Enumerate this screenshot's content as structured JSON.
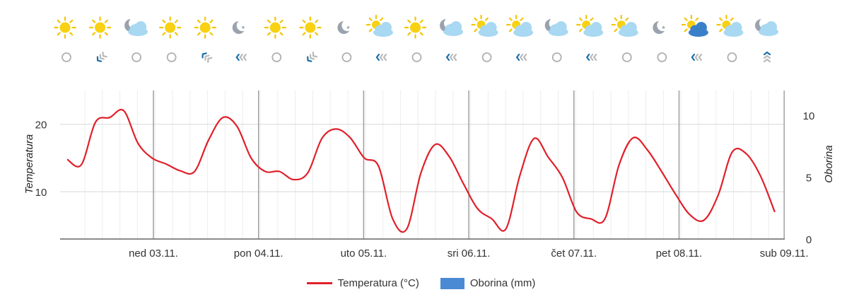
{
  "chart_data": {
    "type": "line",
    "series": [
      {
        "name": "Temperatura (°C)",
        "color": "#e0202a",
        "axis": "left",
        "values": [
          14.8,
          14.0,
          20.3,
          21.0,
          22.0,
          17.2,
          15.0,
          14.1,
          13.1,
          13.0,
          17.7,
          21.0,
          19.7,
          15.0,
          13.0,
          13.0,
          11.8,
          12.8,
          17.9,
          19.3,
          18.0,
          15.0,
          13.8,
          6.0,
          4.5,
          12.8,
          17.0,
          15.2,
          11.2,
          7.5,
          6.0,
          4.5,
          12.5,
          17.9,
          15.1,
          12.1,
          7.0,
          6.0,
          6.0,
          14.0,
          18.0,
          16.2,
          13.0,
          9.6,
          6.6,
          5.8,
          9.5,
          15.9,
          15.6,
          12.3,
          7.0
        ]
      },
      {
        "name": "Oborina (mm)",
        "color": "#4a8ad4",
        "axis": "right",
        "values": [
          0,
          0,
          0,
          0,
          0,
          0,
          0,
          0,
          0,
          0,
          0,
          0,
          0,
          0,
          0,
          0,
          0,
          0,
          0,
          0,
          0,
          0,
          0,
          0,
          0,
          0,
          0,
          0,
          0,
          0,
          0,
          0,
          0,
          0,
          0,
          0,
          0,
          0,
          0,
          0,
          0,
          0,
          0,
          0,
          0,
          0,
          0,
          0,
          0,
          0,
          0
        ]
      }
    ],
    "day_labels": [
      "ned 03.11.",
      "pon 04.11.",
      "uto 05.11.",
      "sri 06.11.",
      "čet 07.11.",
      "pet 08.11.",
      "sub 09.11."
    ],
    "ylabel_left": "Temperatura",
    "ylabel_right": "Oborina",
    "yticks_left": [
      "10",
      "20"
    ],
    "yticks_right": [
      "0",
      "5",
      "10"
    ],
    "ylim_left": [
      3,
      25
    ],
    "ylim_right": [
      0,
      12
    ],
    "grid": true,
    "legend_position": "bottom"
  },
  "weather_icons": [
    "sun-icon",
    "sun-icon",
    "cloud-night-icon",
    "sun-icon",
    "sun-icon",
    "moon-icon",
    "sun-icon",
    "sun-icon",
    "moon-icon",
    "partly-cloudy-icon",
    "sun-icon",
    "cloud-night-icon",
    "partly-cloudy-icon",
    "partly-cloudy-icon",
    "cloud-night-icon",
    "partly-cloudy-icon",
    "partly-cloudy-icon",
    "moon-icon",
    "dark-cloudy-icon",
    "partly-cloudy-icon",
    "cloud-night-icon"
  ],
  "wind_icons": [
    "calm-icon",
    "wind-nw-icon",
    "calm-icon",
    "calm-icon",
    "wind-sw-icon",
    "wind-e-icon",
    "calm-icon",
    "wind-nw-icon",
    "calm-icon",
    "wind-e-icon",
    "calm-icon",
    "wind-e-icon",
    "calm-icon",
    "wind-e-icon",
    "calm-icon",
    "wind-e-icon",
    "calm-icon",
    "calm-icon",
    "wind-e-icon",
    "calm-icon",
    "wind-n-icon"
  ],
  "legend": {
    "temp_label": "Temperatura (°C)",
    "precip_label": "Oborina (mm)"
  },
  "colors": {
    "temperature": "#e0202a",
    "precipitation": "#4a8ad4",
    "wind_arrow": "#1a6fa8"
  }
}
